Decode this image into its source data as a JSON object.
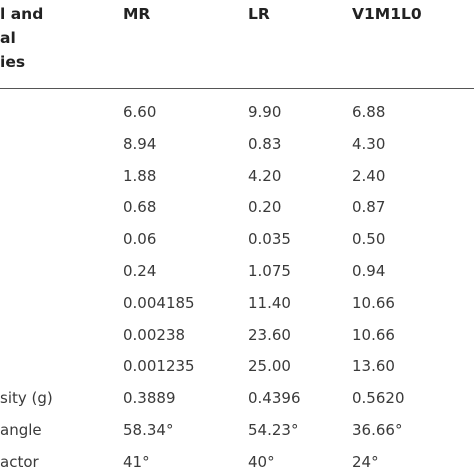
{
  "header": {
    "stub_lines": [
      "l and",
      "al",
      "ies"
    ],
    "columns": [
      "MR",
      "LR",
      "V1M1L0"
    ]
  },
  "table": {
    "rows": [
      {
        "cells": [
          "6.60",
          "9.90",
          "6.88"
        ]
      },
      {
        "cells": [
          "8.94",
          "0.83",
          "4.30"
        ]
      },
      {
        "cells": [
          "1.88",
          "4.20",
          "2.40"
        ]
      },
      {
        "cells": [
          "0.68",
          "0.20",
          "0.87"
        ]
      },
      {
        "cells": [
          "0.06",
          "0.035",
          "0.50"
        ]
      },
      {
        "cells": [
          "0.24",
          "1.075",
          "0.94"
        ]
      },
      {
        "cells": [
          "0.004185",
          "11.40",
          "10.66"
        ]
      },
      {
        "cells": [
          "0.00238",
          "23.60",
          "10.66"
        ]
      },
      {
        "cells": [
          "0.001235",
          "25.00",
          "13.60"
        ]
      },
      {
        "label": "sity (g)",
        "cells": [
          "0.3889",
          "0.4396",
          "0.5620"
        ]
      },
      {
        "label": "angle",
        "cells": [
          "58.34°",
          "54.23°",
          "36.66°"
        ]
      },
      {
        "label": "actor",
        "cells": [
          "41°",
          "40°",
          "24°"
        ]
      }
    ]
  }
}
